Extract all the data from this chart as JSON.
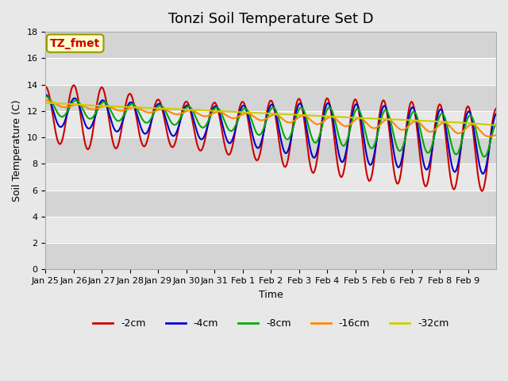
{
  "title": "Tonzi Soil Temperature Set D",
  "xlabel": "Time",
  "ylabel": "Soil Temperature (C)",
  "annotation": "TZ_fmet",
  "annotation_color": "#cc0000",
  "annotation_bg": "#ffffcc",
  "annotation_border": "#999900",
  "ylim": [
    0,
    18
  ],
  "yticks": [
    0,
    2,
    4,
    6,
    8,
    10,
    12,
    14,
    16,
    18
  ],
  "x_labels": [
    "Jan 25",
    "Jan 26",
    "Jan 27",
    "Jan 28",
    "Jan 29",
    "Jan 30",
    "Jan 31",
    "Feb 1",
    "Feb 2",
    "Feb 3",
    "Feb 4",
    "Feb 5",
    "Feb 6",
    "Feb 7",
    "Feb 8",
    "Feb 9"
  ],
  "series_colors": [
    "#cc0000",
    "#0000cc",
    "#00aa00",
    "#ff8800",
    "#cccc00"
  ],
  "series_labels": [
    "-2cm",
    "-4cm",
    "-8cm",
    "-16cm",
    "-32cm"
  ],
  "bg_color": "#e8e8e8",
  "title_fontsize": 13,
  "label_fontsize": 9,
  "tick_fontsize": 8
}
